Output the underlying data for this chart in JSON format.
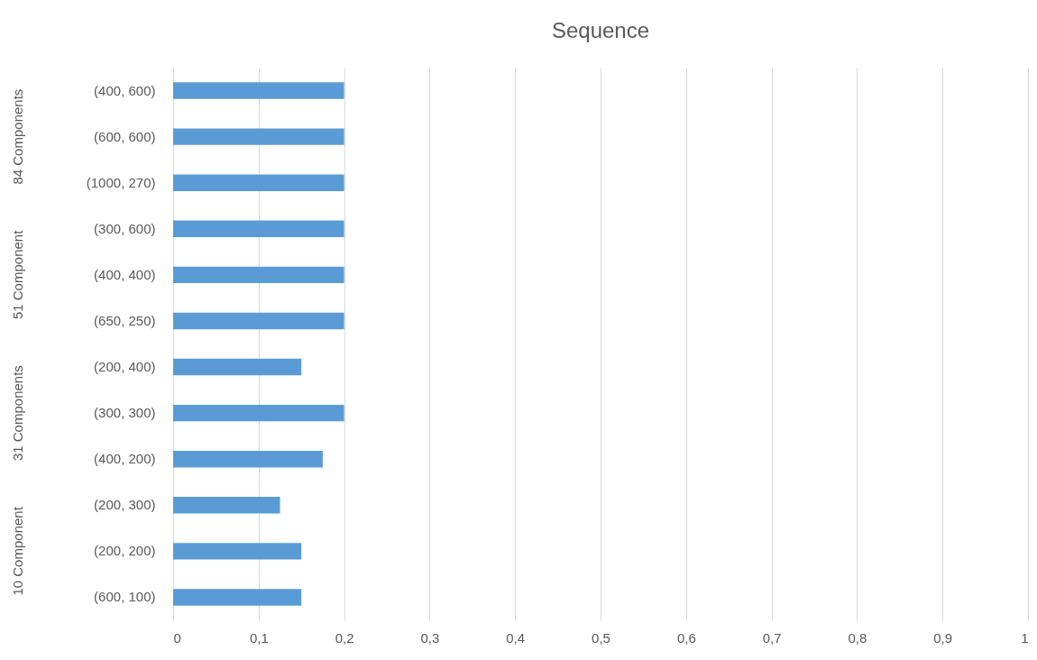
{
  "chart_data": {
    "type": "bar",
    "orientation": "horizontal",
    "title": "Sequence",
    "categories": [
      "(400, 600)",
      "(600, 600)",
      "(1000, 270)",
      "(300, 600)",
      "(400, 400)",
      "(650, 250)",
      "(200, 400)",
      "(300, 300)",
      "(400, 200)",
      "(200, 300)",
      "(200, 200)",
      "(600, 100)"
    ],
    "values": [
      0.2,
      0.2,
      0.2,
      0.2,
      0.2,
      0.2,
      0.15,
      0.2,
      0.175,
      0.125,
      0.15,
      0.15
    ],
    "color": "#5b9bd5",
    "xlim": [
      0,
      1
    ],
    "xticks": [
      0,
      {
        "value": 0.1,
        "label": "0,1"
      },
      {
        "value": 0.2,
        "label": "0,2"
      },
      {
        "value": 0.3,
        "label": "0,3"
      },
      {
        "value": 0.4,
        "label": "0,4"
      },
      {
        "value": 0.5,
        "label": "0,5"
      },
      {
        "value": 0.6,
        "label": "0,6"
      },
      {
        "value": 0.7,
        "label": "0,7"
      },
      {
        "value": 0.8,
        "label": "0,8"
      },
      {
        "value": 0.9,
        "label": "0,9"
      },
      1
    ],
    "grid": "x",
    "annotations": [
      "84 Components",
      "51 Component",
      "31 Components",
      "10 Component"
    ]
  }
}
